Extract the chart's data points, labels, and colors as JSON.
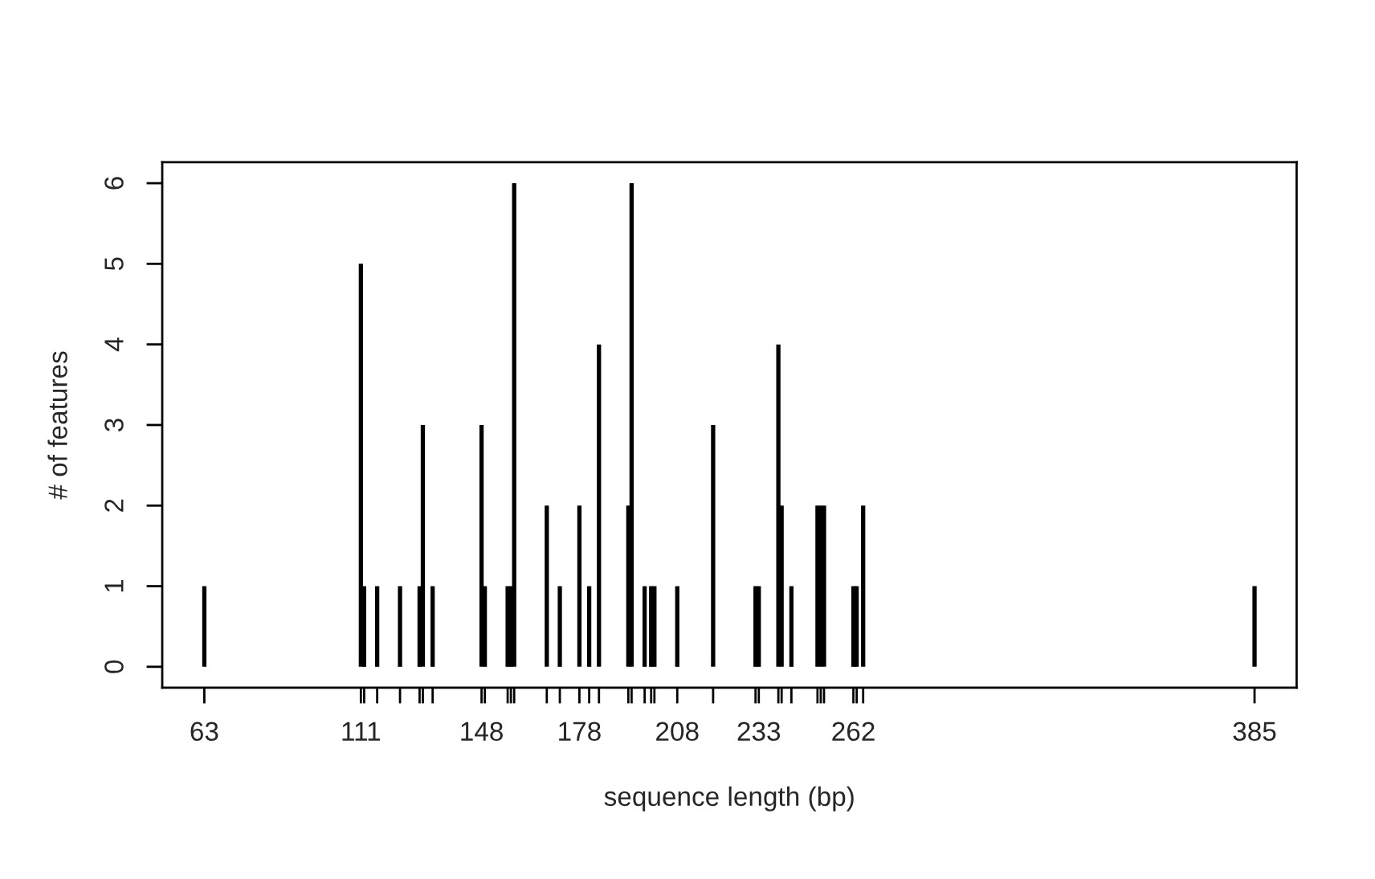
{
  "chart_data": {
    "type": "bar",
    "xlabel": "sequence length (bp)",
    "ylabel": "# of features",
    "color": "#000000",
    "x": [
      63,
      111,
      112,
      116,
      123,
      129,
      130,
      133,
      148,
      149,
      156,
      157,
      158,
      168,
      172,
      178,
      181,
      184,
      193,
      194,
      198,
      200,
      201,
      208,
      219,
      232,
      233,
      239,
      240,
      243,
      251,
      252,
      253,
      262,
      263,
      265,
      385
    ],
    "values": [
      1,
      5,
      1,
      1,
      1,
      1,
      3,
      1,
      3,
      1,
      1,
      1,
      6,
      2,
      1,
      2,
      1,
      4,
      2,
      6,
      1,
      1,
      1,
      1,
      3,
      1,
      1,
      4,
      2,
      1,
      2,
      2,
      2,
      1,
      1,
      2,
      1
    ],
    "xlim": [
      50.1,
      397.9
    ],
    "ylim": [
      -0.26,
      6.26
    ],
    "xticks": [
      63,
      111,
      {
        "value": 112,
        "label": null
      },
      {
        "value": 116,
        "label": null
      },
      {
        "value": 123,
        "label": null
      },
      {
        "value": 129,
        "label": null
      },
      {
        "value": 130,
        "label": null
      },
      {
        "value": 133,
        "label": null
      },
      148,
      {
        "value": 149,
        "label": null
      },
      {
        "value": 156,
        "label": null
      },
      {
        "value": 157,
        "label": null
      },
      {
        "value": 158,
        "label": null
      },
      {
        "value": 168,
        "label": null
      },
      {
        "value": 172,
        "label": null
      },
      178,
      {
        "value": 181,
        "label": null
      },
      {
        "value": 184,
        "label": null
      },
      {
        "value": 193,
        "label": null
      },
      {
        "value": 194,
        "label": null
      },
      {
        "value": 198,
        "label": null
      },
      {
        "value": 200,
        "label": null
      },
      {
        "value": 201,
        "label": null
      },
      208,
      {
        "value": 219,
        "label": null
      },
      {
        "value": 232,
        "label": null
      },
      233,
      {
        "value": 239,
        "label": null
      },
      {
        "value": 240,
        "label": null
      },
      {
        "value": 243,
        "label": null
      },
      {
        "value": 251,
        "label": null
      },
      {
        "value": 252,
        "label": null
      },
      {
        "value": 253,
        "label": null
      },
      262,
      {
        "value": 263,
        "label": null
      },
      {
        "value": 265,
        "label": null
      },
      385
    ],
    "yticks": [
      0,
      1,
      2,
      3,
      4,
      5,
      6
    ],
    "grid": false
  }
}
